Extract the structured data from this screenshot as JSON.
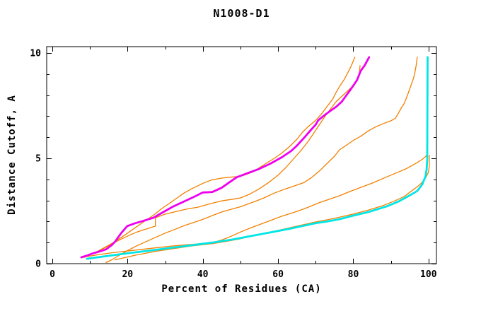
{
  "figure": {
    "background": "#ffffff",
    "axis_color": "#000000"
  },
  "chart_data": {
    "type": "line",
    "title": "N1008-D1",
    "xlabel": "Percent of Residues (CA)",
    "ylabel": "Distance Cutoff, A",
    "x_range": [
      -1.5,
      102.1
    ],
    "y_range": [
      0,
      10.3
    ],
    "x_ticks_major": [
      0,
      20,
      40,
      60,
      80,
      100
    ],
    "x_ticks_minor": [
      10,
      30,
      50,
      70,
      90
    ],
    "y_ticks_major": [
      0,
      5,
      10
    ],
    "y_ticks_minor": [
      1,
      2,
      3,
      4,
      6,
      7,
      8,
      9
    ],
    "grid": false,
    "legend_position": "none",
    "series": [
      {
        "name": "orange-model-1",
        "color": "#f28000",
        "width": 1.3,
        "points": [
          [
            7.8,
            0.28
          ],
          [
            10,
            0.42
          ],
          [
            12,
            0.58
          ],
          [
            14,
            0.78
          ],
          [
            16,
            0.98
          ],
          [
            18,
            1.2
          ],
          [
            20,
            1.45
          ],
          [
            22,
            1.7
          ],
          [
            24,
            1.95
          ],
          [
            26.9,
            2.3
          ],
          [
            29,
            2.6
          ],
          [
            31,
            2.85
          ],
          [
            33,
            3.1
          ],
          [
            35,
            3.35
          ],
          [
            37,
            3.55
          ],
          [
            39,
            3.72
          ],
          [
            40.5,
            3.85
          ],
          [
            42.5,
            3.98
          ],
          [
            45,
            4.06
          ],
          [
            47,
            4.1
          ],
          [
            49,
            4.13
          ],
          [
            51,
            4.2
          ],
          [
            53,
            4.33
          ],
          [
            55,
            4.55
          ],
          [
            57,
            4.78
          ],
          [
            59,
            5.0
          ],
          [
            61,
            5.25
          ],
          [
            63,
            5.55
          ],
          [
            65,
            5.9
          ],
          [
            66.5,
            6.24
          ],
          [
            68,
            6.5
          ],
          [
            70,
            6.8
          ],
          [
            71.5,
            7.1
          ],
          [
            73,
            7.45
          ],
          [
            74.5,
            7.8
          ],
          [
            75.5,
            8.15
          ],
          [
            76.5,
            8.45
          ],
          [
            77.5,
            8.72
          ],
          [
            78.5,
            9.05
          ],
          [
            79.5,
            9.4
          ],
          [
            80.4,
            9.8
          ]
        ]
      },
      {
        "name": "orange-model-2",
        "color": "#f28000",
        "width": 1.3,
        "points": [
          [
            8.5,
            0.3
          ],
          [
            10.5,
            0.45
          ],
          [
            12.5,
            0.62
          ],
          [
            14.5,
            0.8
          ],
          [
            16.5,
            1.0
          ],
          [
            18.5,
            1.18
          ],
          [
            20.5,
            1.35
          ],
          [
            22.5,
            1.5
          ],
          [
            24.5,
            1.62
          ],
          [
            26,
            1.7
          ],
          [
            27.4,
            1.78
          ],
          [
            27.4,
            2.18
          ],
          [
            30,
            2.35
          ],
          [
            33,
            2.48
          ],
          [
            36,
            2.6
          ],
          [
            38.7,
            2.68
          ],
          [
            42,
            2.85
          ],
          [
            45,
            2.98
          ],
          [
            48,
            3.06
          ],
          [
            50,
            3.12
          ],
          [
            52.5,
            3.3
          ],
          [
            55,
            3.55
          ],
          [
            57.5,
            3.85
          ],
          [
            60,
            4.2
          ],
          [
            62,
            4.55
          ],
          [
            64,
            4.95
          ],
          [
            66,
            5.35
          ],
          [
            68,
            5.8
          ],
          [
            69.5,
            6.2
          ],
          [
            71,
            6.6
          ],
          [
            72.5,
            7.0
          ],
          [
            74,
            7.35
          ],
          [
            75.5,
            7.7
          ],
          [
            77,
            7.95
          ],
          [
            78.5,
            8.2
          ],
          [
            80,
            8.45
          ],
          [
            81,
            8.7
          ],
          [
            81.6,
            9.0
          ],
          [
            81.8,
            9.4
          ]
        ]
      },
      {
        "name": "orange-model-3",
        "color": "#f28000",
        "width": 1.3,
        "points": [
          [
            14.3,
            0.05
          ],
          [
            16,
            0.2
          ],
          [
            18,
            0.42
          ],
          [
            20,
            0.62
          ],
          [
            22.5,
            0.85
          ],
          [
            25,
            1.05
          ],
          [
            27.5,
            1.25
          ],
          [
            30,
            1.45
          ],
          [
            32.5,
            1.62
          ],
          [
            35,
            1.8
          ],
          [
            37.5,
            1.95
          ],
          [
            40,
            2.1
          ],
          [
            42.5,
            2.28
          ],
          [
            45,
            2.45
          ],
          [
            47.5,
            2.58
          ],
          [
            50,
            2.7
          ],
          [
            53,
            2.9
          ],
          [
            56,
            3.1
          ],
          [
            59,
            3.35
          ],
          [
            62,
            3.55
          ],
          [
            64.5,
            3.7
          ],
          [
            66.9,
            3.85
          ],
          [
            69,
            4.1
          ],
          [
            71,
            4.4
          ],
          [
            73,
            4.75
          ],
          [
            75,
            5.1
          ],
          [
            76.3,
            5.4
          ],
          [
            78,
            5.6
          ],
          [
            80,
            5.85
          ],
          [
            82,
            6.05
          ],
          [
            84,
            6.3
          ],
          [
            86,
            6.5
          ],
          [
            88,
            6.65
          ],
          [
            90,
            6.78
          ],
          [
            91.2,
            6.9
          ],
          [
            92,
            7.15
          ],
          [
            92.8,
            7.4
          ],
          [
            93.5,
            7.6
          ],
          [
            94.2,
            7.9
          ],
          [
            94.8,
            8.2
          ],
          [
            95.4,
            8.5
          ],
          [
            96,
            8.8
          ],
          [
            96.4,
            9.1
          ],
          [
            96.7,
            9.4
          ],
          [
            97,
            9.8
          ]
        ]
      },
      {
        "name": "orange-model-4",
        "color": "#f28000",
        "width": 1.3,
        "points": [
          [
            7.9,
            0.3
          ],
          [
            12,
            0.42
          ],
          [
            16,
            0.52
          ],
          [
            20,
            0.6
          ],
          [
            24,
            0.68
          ],
          [
            28,
            0.76
          ],
          [
            32,
            0.84
          ],
          [
            36,
            0.9
          ],
          [
            40,
            0.95
          ],
          [
            42.5,
            1.0
          ],
          [
            45,
            1.12
          ],
          [
            47.5,
            1.3
          ],
          [
            50,
            1.5
          ],
          [
            52.5,
            1.68
          ],
          [
            55,
            1.85
          ],
          [
            58,
            2.05
          ],
          [
            61,
            2.25
          ],
          [
            64,
            2.42
          ],
          [
            66.9,
            2.6
          ],
          [
            69,
            2.75
          ],
          [
            71,
            2.9
          ],
          [
            73.5,
            3.05
          ],
          [
            76.3,
            3.22
          ],
          [
            79,
            3.42
          ],
          [
            82,
            3.62
          ],
          [
            85,
            3.82
          ],
          [
            88,
            4.05
          ],
          [
            90,
            4.2
          ],
          [
            92,
            4.35
          ],
          [
            94,
            4.5
          ],
          [
            95.5,
            4.65
          ],
          [
            97,
            4.8
          ],
          [
            98.3,
            4.95
          ],
          [
            99.2,
            5.08
          ],
          [
            99.45,
            5.15
          ]
        ]
      },
      {
        "name": "orange-model-5",
        "color": "#f28000",
        "width": 1.3,
        "points": [
          [
            16.7,
            0.18
          ],
          [
            19,
            0.28
          ],
          [
            22,
            0.4
          ],
          [
            25,
            0.5
          ],
          [
            28,
            0.6
          ],
          [
            31,
            0.68
          ],
          [
            34,
            0.76
          ],
          [
            37,
            0.84
          ],
          [
            40,
            0.9
          ],
          [
            42.5,
            0.95
          ],
          [
            46,
            1.05
          ],
          [
            50,
            1.18
          ],
          [
            54,
            1.35
          ],
          [
            58,
            1.5
          ],
          [
            62.6,
            1.68
          ],
          [
            66,
            1.82
          ],
          [
            70,
            1.98
          ],
          [
            73,
            2.08
          ],
          [
            76.3,
            2.2
          ],
          [
            80,
            2.36
          ],
          [
            84,
            2.54
          ],
          [
            88,
            2.76
          ],
          [
            91,
            2.98
          ],
          [
            93.5,
            3.18
          ],
          [
            95.1,
            3.4
          ],
          [
            96.5,
            3.58
          ],
          [
            97.5,
            3.72
          ],
          [
            98.5,
            3.9
          ],
          [
            99.3,
            4.1
          ],
          [
            99.9,
            4.3
          ],
          [
            100.2,
            4.6
          ],
          [
            100.2,
            5.15
          ]
        ]
      },
      {
        "name": "magenta-model",
        "color": "#ee00ee",
        "width": 2.8,
        "points": [
          [
            7.7,
            0.3
          ],
          [
            9.5,
            0.4
          ],
          [
            11,
            0.5
          ],
          [
            13,
            0.6
          ],
          [
            14.3,
            0.68
          ],
          [
            15.8,
            0.88
          ],
          [
            16.7,
            1.05
          ],
          [
            18.3,
            1.45
          ],
          [
            19.9,
            1.78
          ],
          [
            22,
            1.92
          ],
          [
            24,
            2.02
          ],
          [
            26.9,
            2.18
          ],
          [
            29,
            2.4
          ],
          [
            32,
            2.7
          ],
          [
            35,
            2.95
          ],
          [
            38,
            3.2
          ],
          [
            40,
            3.38
          ],
          [
            42.5,
            3.4
          ],
          [
            45,
            3.6
          ],
          [
            47,
            3.85
          ],
          [
            49,
            4.1
          ],
          [
            52,
            4.3
          ],
          [
            55,
            4.5
          ],
          [
            58,
            4.75
          ],
          [
            61,
            5.05
          ],
          [
            63.5,
            5.35
          ],
          [
            65,
            5.6
          ],
          [
            66.9,
            5.97
          ],
          [
            68.5,
            6.3
          ],
          [
            70,
            6.6
          ],
          [
            70.7,
            6.81
          ],
          [
            72,
            7.0
          ],
          [
            73.9,
            7.25
          ],
          [
            75.5,
            7.45
          ],
          [
            77,
            7.7
          ],
          [
            78,
            7.95
          ],
          [
            79.1,
            8.22
          ],
          [
            80,
            8.45
          ],
          [
            81,
            8.72
          ],
          [
            82,
            9.16
          ],
          [
            83,
            9.4
          ],
          [
            84.2,
            9.8
          ]
        ]
      },
      {
        "name": "cyan-model",
        "color": "#00e6e6",
        "width": 2.8,
        "points": [
          [
            9.2,
            0.23
          ],
          [
            14,
            0.35
          ],
          [
            20.3,
            0.5
          ],
          [
            26,
            0.62
          ],
          [
            31.2,
            0.74
          ],
          [
            36,
            0.85
          ],
          [
            42.5,
            1.0
          ],
          [
            48,
            1.15
          ],
          [
            52,
            1.28
          ],
          [
            56,
            1.42
          ],
          [
            60,
            1.55
          ],
          [
            63,
            1.65
          ],
          [
            66.9,
            1.8
          ],
          [
            70,
            1.92
          ],
          [
            73,
            2.0
          ],
          [
            76.3,
            2.11
          ],
          [
            80,
            2.28
          ],
          [
            84,
            2.45
          ],
          [
            88.9,
            2.72
          ],
          [
            92,
            2.95
          ],
          [
            95.1,
            3.25
          ],
          [
            97,
            3.45
          ],
          [
            98.3,
            3.75
          ],
          [
            99.2,
            4.15
          ],
          [
            99.5,
            4.5
          ],
          [
            99.65,
            5.0
          ],
          [
            99.75,
            9.8
          ]
        ]
      }
    ]
  }
}
